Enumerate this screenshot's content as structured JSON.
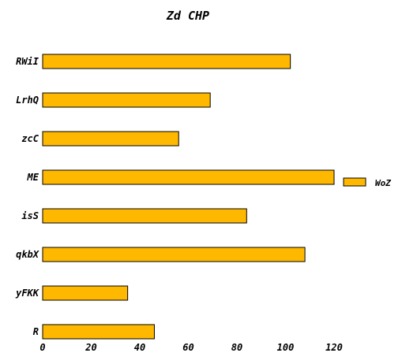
{
  "chart_data": {
    "type": "bar",
    "orientation": "horizontal",
    "title": "Zd CHP",
    "xlabel": "",
    "ylabel": "",
    "categories": [
      "RWiI",
      "LrhQ",
      "zcC",
      "ME",
      "isS",
      "qkbX",
      "yFKK",
      "R"
    ],
    "series": [
      {
        "name": "WoZ",
        "color": "#FFB800",
        "values": [
          102,
          69,
          56,
          120,
          84,
          108,
          35,
          46
        ]
      }
    ],
    "xlim": [
      0,
      120
    ],
    "xticks": [
      0,
      20,
      40,
      60,
      80,
      100,
      120
    ],
    "grid": false,
    "legend_position": "right"
  }
}
